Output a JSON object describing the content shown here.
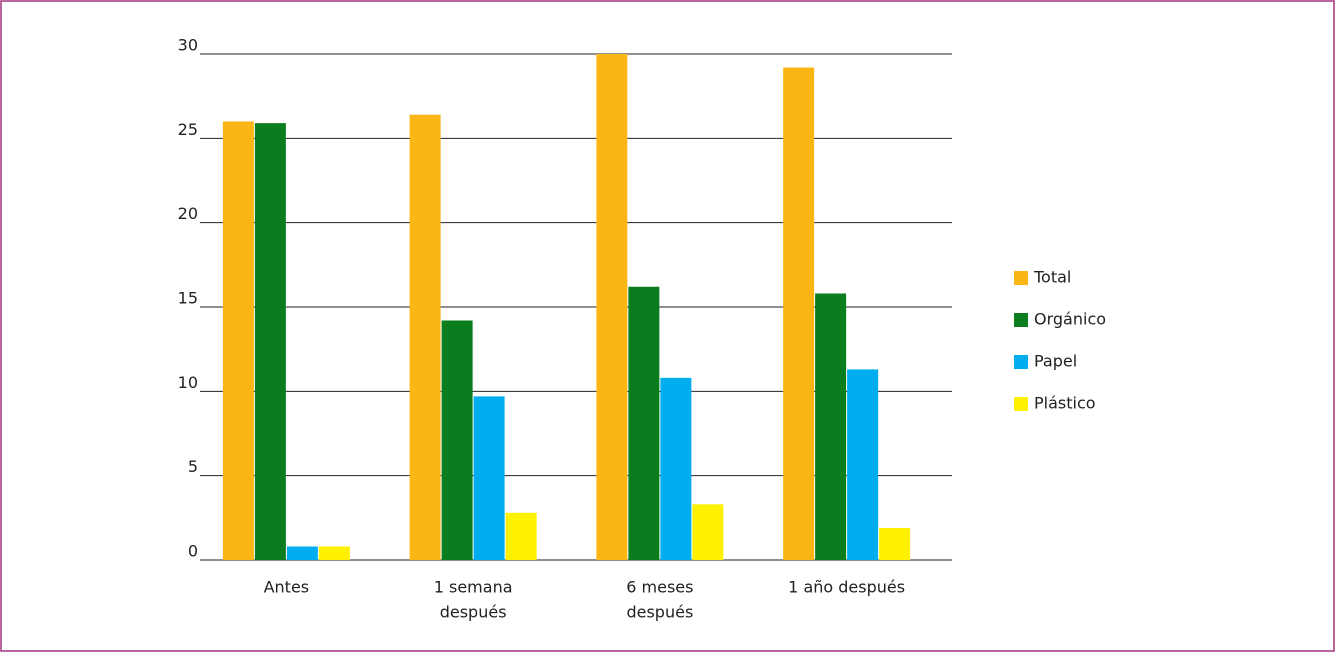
{
  "chart_data": {
    "type": "bar",
    "categories": [
      [
        "Antes"
      ],
      [
        "1 semana",
        "después"
      ],
      [
        "6 meses",
        "después"
      ],
      [
        "1 año después"
      ]
    ],
    "series": [
      {
        "name": "Total",
        "color": "#fbb616",
        "values": [
          26,
          26.4,
          30,
          29.2
        ]
      },
      {
        "name": "Orgánico",
        "color": "#0a7d1e",
        "values": [
          25.9,
          14.2,
          16.2,
          15.8
        ]
      },
      {
        "name": "Papel",
        "color": "#00aeef",
        "values": [
          0.8,
          9.7,
          10.8,
          11.3
        ]
      },
      {
        "name": "Plástico",
        "color": "#fff200",
        "values": [
          0.8,
          2.8,
          3.3,
          1.9
        ]
      }
    ],
    "ylim": [
      0,
      30
    ],
    "yticks": [
      0,
      5,
      10,
      15,
      20,
      25,
      30
    ],
    "grid": true,
    "legend": "right"
  }
}
